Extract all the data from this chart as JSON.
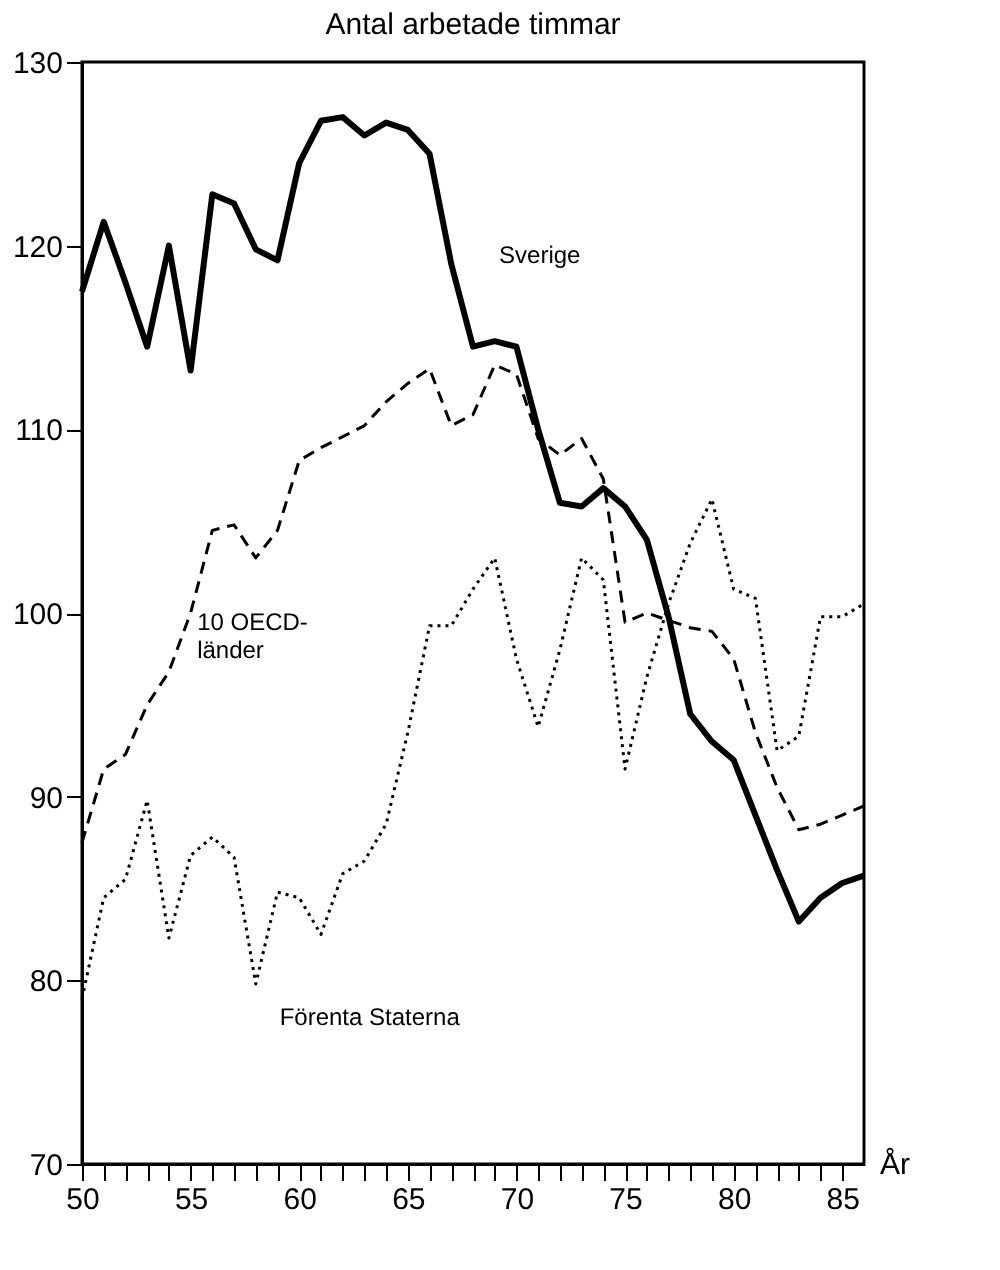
{
  "chart_data": {
    "type": "line",
    "title": "Antal arbetade timmar",
    "xlabel": "År",
    "x": [
      50,
      51,
      52,
      53,
      54,
      55,
      56,
      57,
      58,
      59,
      60,
      61,
      62,
      63,
      64,
      65,
      66,
      67,
      68,
      69,
      70,
      71,
      72,
      73,
      74,
      75,
      76,
      77,
      78,
      79,
      80,
      81,
      82,
      83,
      84,
      85,
      86
    ],
    "series": [
      {
        "name": "Sverige",
        "color": "#000000",
        "line_style": "solid",
        "values": [
          117.5,
          121.3,
          118,
          114.5,
          120,
          113.2,
          122.8,
          122.3,
          119.8,
          119.2,
          124.5,
          126.8,
          127,
          126,
          126.7,
          126.3,
          125,
          119,
          114.5,
          114.8,
          114.5,
          110,
          106,
          105.8,
          106.8,
          105.8,
          104,
          99.8,
          94.5,
          93,
          92,
          89,
          86,
          83.2,
          84.5,
          85.3,
          85.7
        ]
      },
      {
        "name": "10 OECD-\nländer",
        "color": "#000000",
        "line_style": "dashed",
        "values": [
          87.5,
          91.5,
          92.3,
          95,
          96.8,
          100,
          104.5,
          104.8,
          103,
          104.5,
          108.3,
          109,
          109.6,
          110.2,
          111.5,
          112.5,
          113.3,
          110.2,
          110.8,
          113.5,
          113,
          109.5,
          108.6,
          109.5,
          107.3,
          99.5,
          100,
          99.6,
          99.2,
          99,
          97.5,
          93.5,
          90.5,
          88.2,
          88.5,
          89,
          89.5
        ]
      },
      {
        "name": "Förenta Staterna",
        "color": "#000000",
        "line_style": "dotted",
        "values": [
          79,
          84.5,
          85.5,
          89.8,
          82.3,
          86.8,
          87.8,
          86.7,
          79.8,
          84.8,
          84.5,
          82.5,
          85.8,
          86.5,
          88.5,
          93.5,
          99.3,
          99.3,
          101.3,
          103,
          97.5,
          93.8,
          98,
          103,
          101.8,
          91.5,
          96.5,
          100.5,
          103.8,
          106.2,
          101.3,
          100.8,
          92.5,
          93.3,
          99.8,
          99.8,
          100.5
        ]
      }
    ],
    "xlim": [
      50,
      86
    ],
    "xticks": [
      50,
      {
        "value": 51,
        "label": null
      },
      {
        "value": 52,
        "label": null
      },
      {
        "value": 53,
        "label": null
      },
      {
        "value": 54,
        "label": null
      },
      55,
      {
        "value": 56,
        "label": null
      },
      {
        "value": 57,
        "label": null
      },
      {
        "value": 58,
        "label": null
      },
      {
        "value": 59,
        "label": null
      },
      60,
      {
        "value": 61,
        "label": null
      },
      {
        "value": 62,
        "label": null
      },
      {
        "value": 63,
        "label": null
      },
      {
        "value": 64,
        "label": null
      },
      65,
      {
        "value": 66,
        "label": null
      },
      {
        "value": 67,
        "label": null
      },
      {
        "value": 68,
        "label": null
      },
      {
        "value": 69,
        "label": null
      },
      70,
      {
        "value": 71,
        "label": null
      },
      {
        "value": 72,
        "label": null
      },
      {
        "value": 73,
        "label": null
      },
      {
        "value": 74,
        "label": null
      },
      75,
      {
        "value": 76,
        "label": null
      },
      {
        "value": 77,
        "label": null
      },
      {
        "value": 78,
        "label": null
      },
      {
        "value": 79,
        "label": null
      },
      80,
      {
        "value": 81,
        "label": null
      },
      {
        "value": 82,
        "label": null
      },
      {
        "value": 83,
        "label": null
      },
      {
        "value": 84,
        "label": null
      },
      85
    ],
    "ylim": [
      70,
      130
    ],
    "yticks": [
      70,
      80,
      90,
      100,
      110,
      120,
      130
    ],
    "grid": false,
    "marker": "none"
  }
}
